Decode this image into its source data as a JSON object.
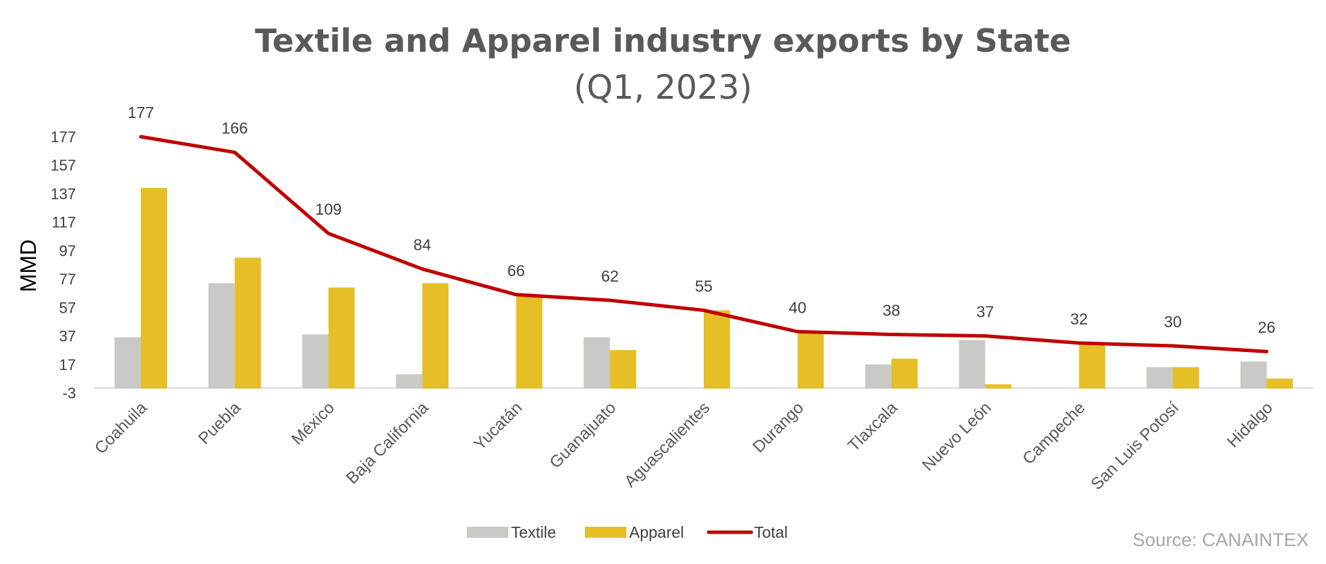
{
  "chart_data": {
    "type": "bar",
    "title": "Textile and Apparel industry exports by State",
    "subtitle": "(Q1, 2023)",
    "ylabel": "MMD",
    "xlabel": "",
    "ylim": [
      -3,
      177
    ],
    "yticks": [
      177,
      157,
      137,
      117,
      97,
      77,
      57,
      37,
      17,
      -3
    ],
    "grid": false,
    "legend_position": "bottom",
    "categories": [
      "Coahuila",
      "Puebla",
      "México",
      "Baja California",
      "Yucatán",
      "Guanajuato",
      "Aguascalientes",
      "Durango",
      "Tlaxcala",
      "Nuevo León",
      "Campeche",
      "San Luis Potosí",
      "Hidalgo"
    ],
    "series": [
      {
        "name": "Textile",
        "type": "bar",
        "color": "#c9c9c5",
        "values": [
          36,
          74,
          38,
          10,
          0,
          36,
          0,
          0,
          17,
          34,
          0,
          15,
          19
        ]
      },
      {
        "name": "Apparel",
        "type": "bar",
        "color": "#e6bf27",
        "values": [
          141,
          92,
          71,
          74,
          66,
          27,
          55,
          40,
          21,
          3,
          32,
          15,
          7
        ]
      },
      {
        "name": "Total",
        "type": "line",
        "color": "#c00000",
        "values": [
          177,
          166,
          109,
          84,
          66,
          62,
          55,
          40,
          38,
          37,
          32,
          30,
          26
        ]
      }
    ],
    "data_labels": [
      "177",
      "166",
      "109",
      "84",
      "66",
      "62",
      "55",
      "40",
      "38",
      "37",
      "32",
      "30",
      "26"
    ],
    "source": "Source: CANAINTEX"
  }
}
